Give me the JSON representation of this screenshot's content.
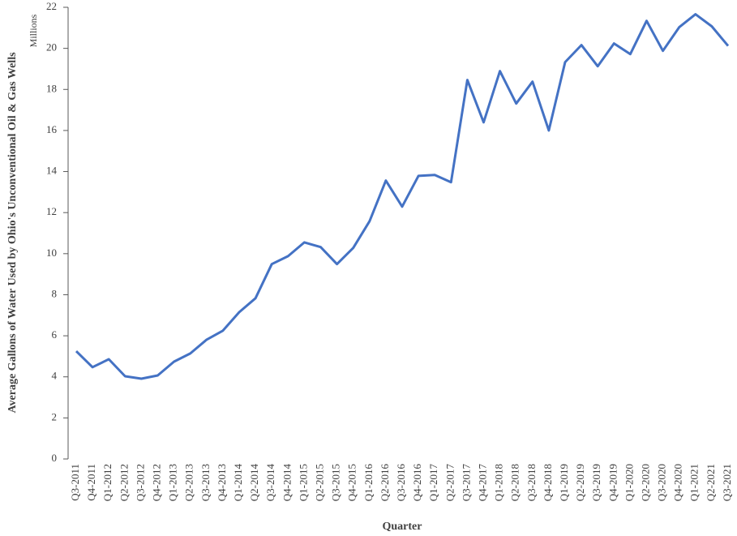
{
  "chart_data": {
    "type": "line",
    "y_label": "Average Gallons of Water Used by Ohio's Unconventional Oil & Gas Wells",
    "y_unit": "Millions",
    "x_label": "Quarter",
    "categories": [
      "Q3-2011",
      "Q4-2011",
      "Q1-2012",
      "Q2-2012",
      "Q3-2012",
      "Q4-2012",
      "Q1-2013",
      "Q2-2013",
      "Q3-2013",
      "Q4-2013",
      "Q1-2014",
      "Q2-2014",
      "Q3-2014",
      "Q4-2014",
      "Q1-2015",
      "Q2-2015",
      "Q3-2015",
      "Q4-2015",
      "Q1-2016",
      "Q2-2016",
      "Q3-2016",
      "Q4-2016",
      "Q1-2017",
      "Q2-2017",
      "Q3-2017",
      "Q4-2017",
      "Q1-2018",
      "Q2-2018",
      "Q3-2018",
      "Q4-2018",
      "Q1-2019",
      "Q2-2019",
      "Q3-2019",
      "Q4-2019",
      "Q1-2020",
      "Q2-2020",
      "Q3-2020",
      "Q4-2020",
      "Q1-2021",
      "Q2-2021",
      "Q3-2021"
    ],
    "values": [
      5.25,
      4.47,
      4.86,
      4.03,
      3.91,
      4.07,
      4.74,
      5.14,
      5.81,
      6.25,
      7.15,
      7.83,
      9.49,
      9.88,
      10.55,
      10.32,
      9.49,
      10.28,
      11.58,
      13.56,
      12.29,
      13.79,
      13.83,
      13.48,
      18.46,
      16.4,
      18.89,
      17.31,
      18.38,
      16.0,
      19.33,
      20.16,
      19.13,
      20.24,
      19.72,
      21.34,
      19.88,
      21.03,
      21.66,
      21.07,
      20.12
    ],
    "color": "#4472c4",
    "ylim": [
      0,
      22
    ],
    "yticks": [
      0,
      2,
      4,
      6,
      8,
      10,
      12,
      14,
      16,
      18,
      20,
      22
    ],
    "grid": false
  }
}
